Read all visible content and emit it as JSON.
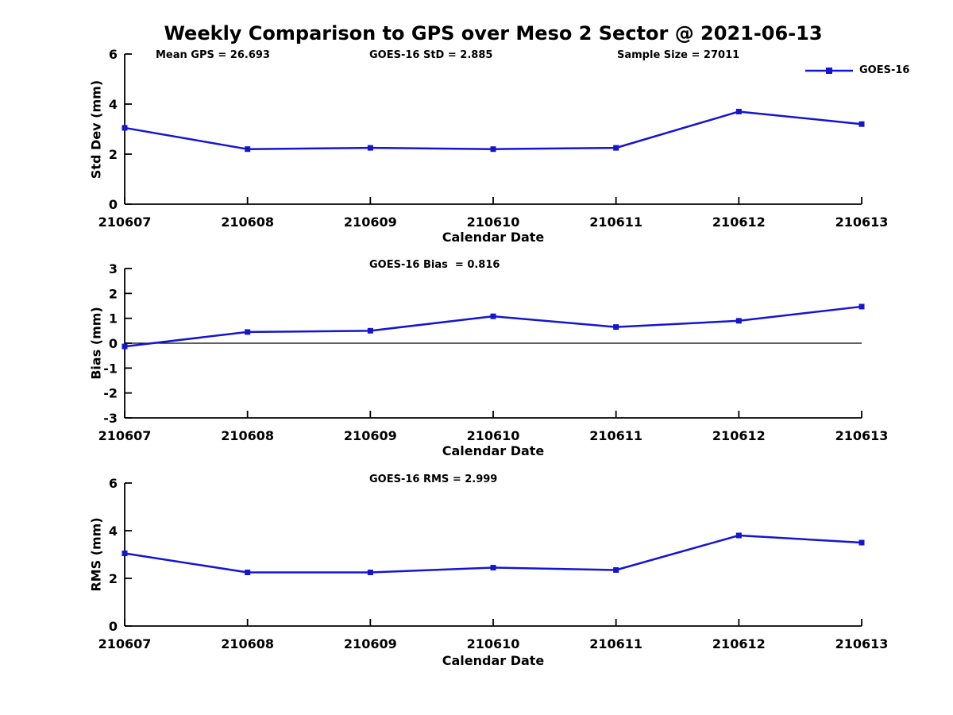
{
  "figure": {
    "title": "Weekly Comparison to GPS over Meso 2 Sector @ 2021-06-13",
    "background_color": "#ffffff",
    "line_color": "#1515cf",
    "axis_color": "#000000",
    "legend": {
      "label": "GOES-16",
      "position": "top-right",
      "marker": "square"
    }
  },
  "annotations": {
    "mean_gps": "Mean GPS = 26.693",
    "goes16_std": "GOES-16 StD = 2.885",
    "sample_size": "Sample Size = 27011"
  },
  "chart_data": [
    {
      "type": "line",
      "title": "",
      "categories": [
        "210607",
        "210608",
        "210609",
        "210610",
        "210611",
        "210612",
        "210613"
      ],
      "series": [
        {
          "name": "GOES-16",
          "values": [
            3.05,
            2.2,
            2.25,
            2.2,
            2.25,
            3.7,
            3.2
          ]
        }
      ],
      "xlabel": "Calendar Date",
      "ylabel": "Std Dev (mm)",
      "ylim": [
        0,
        6
      ],
      "yticks": [
        0,
        2,
        4,
        6
      ],
      "grid": false,
      "zero_line": false,
      "legend_position": "upper right"
    },
    {
      "type": "line",
      "title": "GOES-16 Bias  = 0.816",
      "categories": [
        "210607",
        "210608",
        "210609",
        "210610",
        "210611",
        "210612",
        "210613"
      ],
      "series": [
        {
          "name": "GOES-16",
          "values": [
            -0.13,
            0.45,
            0.5,
            1.08,
            0.65,
            0.9,
            1.47
          ]
        }
      ],
      "xlabel": "Calendar Date",
      "ylabel": "Bias (mm)",
      "ylim": [
        -3,
        3
      ],
      "yticks": [
        -3,
        -2,
        -1,
        0,
        1,
        2,
        3
      ],
      "grid": false,
      "zero_line": true,
      "legend_position": "none"
    },
    {
      "type": "line",
      "title": "GOES-16 RMS = 2.999",
      "categories": [
        "210607",
        "210608",
        "210609",
        "210610",
        "210611",
        "210612",
        "210613"
      ],
      "series": [
        {
          "name": "GOES-16",
          "values": [
            3.05,
            2.25,
            2.25,
            2.45,
            2.35,
            3.8,
            3.5
          ]
        }
      ],
      "xlabel": "Calendar Date",
      "ylabel": "RMS (mm)",
      "ylim": [
        0,
        6
      ],
      "yticks": [
        0,
        2,
        4,
        6
      ],
      "grid": false,
      "zero_line": false,
      "legend_position": "none"
    }
  ]
}
